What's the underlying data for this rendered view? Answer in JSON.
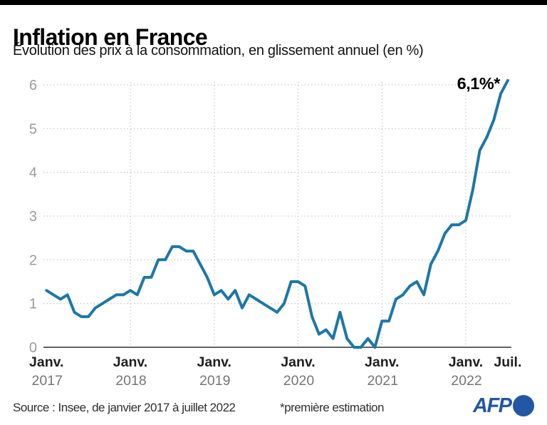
{
  "header": {
    "title": "Inflation en France",
    "subtitle": "Évolution des prix à la consommation, en glissement annuel (en %)"
  },
  "footer": {
    "source": "Source : Insee, de janvier 2017 à juillet 2022",
    "note": "*première estimation",
    "logo_text": "AFP",
    "logo_color": "#2257a5"
  },
  "colors": {
    "line": "#1d77a6",
    "grid": "#c9c9c9",
    "axis": "#636363",
    "ytick_label": "#9b9b9b",
    "xtick_month": "#1f1f1f",
    "xtick_year": "#757575",
    "annotation": "#000000"
  },
  "chart_data": {
    "type": "line",
    "title": "Inflation en France",
    "subtitle": "Évolution des prix à la consommation, en glissement annuel (en %)",
    "unit": "%",
    "x_start": "Janv. 2017",
    "x_end": "Juil. 2022",
    "frequency": "monthly",
    "ylim": [
      0,
      6
    ],
    "yticks": [
      0,
      1,
      2,
      3,
      4,
      5,
      6
    ],
    "grid": "dotted",
    "legend": "none",
    "values": [
      1.3,
      1.2,
      1.1,
      1.2,
      0.8,
      0.7,
      0.7,
      0.9,
      1.0,
      1.1,
      1.2,
      1.2,
      1.3,
      1.2,
      1.6,
      1.6,
      2.0,
      2.0,
      2.3,
      2.3,
      2.2,
      2.2,
      1.9,
      1.6,
      1.2,
      1.3,
      1.1,
      1.3,
      0.9,
      1.2,
      1.1,
      1.0,
      0.9,
      0.8,
      1.0,
      1.5,
      1.5,
      1.4,
      0.7,
      0.3,
      0.4,
      0.2,
      0.8,
      0.2,
      0.0,
      0.0,
      0.2,
      0.0,
      0.6,
      0.6,
      1.1,
      1.2,
      1.4,
      1.5,
      1.2,
      1.9,
      2.2,
      2.6,
      2.8,
      2.8,
      2.9,
      3.6,
      4.5,
      4.8,
      5.2,
      5.8,
      6.1
    ],
    "x_ticks": [
      {
        "month": "Janv.",
        "year": "2017",
        "month_index": 0
      },
      {
        "month": "Janv.",
        "year": "2018",
        "month_index": 12
      },
      {
        "month": "Janv.",
        "year": "2019",
        "month_index": 24
      },
      {
        "month": "Janv.",
        "year": "2020",
        "month_index": 36
      },
      {
        "month": "Janv.",
        "year": "2021",
        "month_index": 48
      },
      {
        "month": "Janv.",
        "year": "2022",
        "month_index": 60
      },
      {
        "month": "Juil.",
        "year": "",
        "month_index": 66
      }
    ],
    "vertical_gridline_month_indices": [
      12,
      24,
      36,
      48,
      60
    ],
    "annotation": {
      "text": "6,1%*",
      "month_index": 66,
      "value": 6.1
    }
  }
}
